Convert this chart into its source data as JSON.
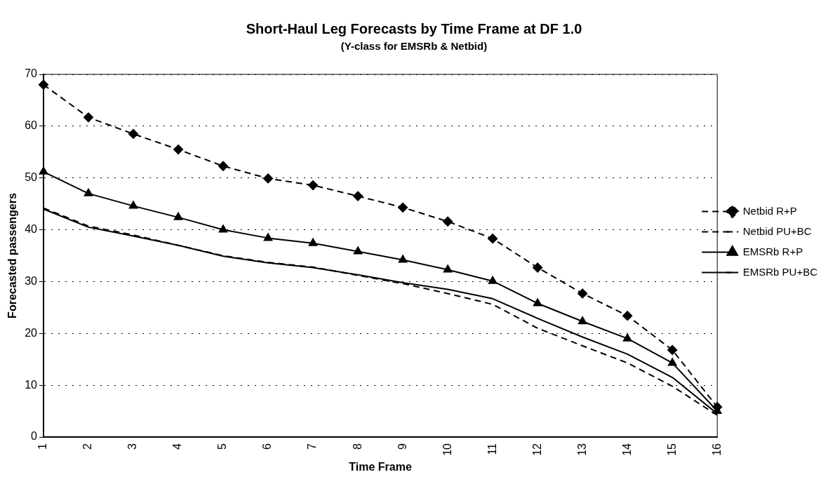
{
  "chart_data": {
    "type": "line",
    "title": "Short-Haul Leg Forecasts by Time Frame at DF 1.0",
    "subtitle": "(Y-class for EMSRb & Netbid)",
    "xlabel": "Time Frame",
    "ylabel": "Forecasted passengers",
    "categories": [
      "1",
      "2",
      "3",
      "4",
      "5",
      "6",
      "7",
      "8",
      "9",
      "10",
      "11",
      "12",
      "13",
      "14",
      "15",
      "16"
    ],
    "series": [
      {
        "name": "Netbid R+P",
        "color": "#000000",
        "marker": "diamond",
        "line_style": "dashed",
        "values": [
          68,
          61.7,
          58.5,
          55.5,
          52.3,
          49.9,
          48.6,
          46.5,
          44.3,
          41.6,
          38.3,
          32.7,
          27.7,
          23.4,
          16.8,
          5.8
        ]
      },
      {
        "name": "Netbid PU+BC",
        "color": "#000000",
        "marker": "none",
        "line_style": "dashed",
        "values": [
          44.2,
          40.7,
          39,
          37,
          35,
          33.7,
          32.8,
          31.2,
          29.6,
          27.7,
          25.6,
          21,
          17.6,
          14.3,
          9.8,
          4.2
        ]
      },
      {
        "name": "EMSRb R+P",
        "color": "#000000",
        "marker": "triangle",
        "line_style": "solid",
        "values": [
          51.2,
          47,
          44.6,
          42.4,
          40,
          38.4,
          37.4,
          35.8,
          34.2,
          32.3,
          30.1,
          25.8,
          22.3,
          19,
          14.3,
          5
        ]
      },
      {
        "name": "EMSRb PU+BC",
        "color": "#000000",
        "marker": "none",
        "line_style": "solid",
        "values": [
          44,
          40.5,
          38.8,
          37,
          34.9,
          33.6,
          32.7,
          31.3,
          29.8,
          28.5,
          26.7,
          22.9,
          19.3,
          16,
          11.5,
          4.5
        ]
      }
    ],
    "ylim": [
      0,
      70
    ],
    "yticks": [
      0,
      10,
      20,
      30,
      40,
      50,
      60,
      70
    ],
    "grid": "y",
    "legend": "right"
  }
}
